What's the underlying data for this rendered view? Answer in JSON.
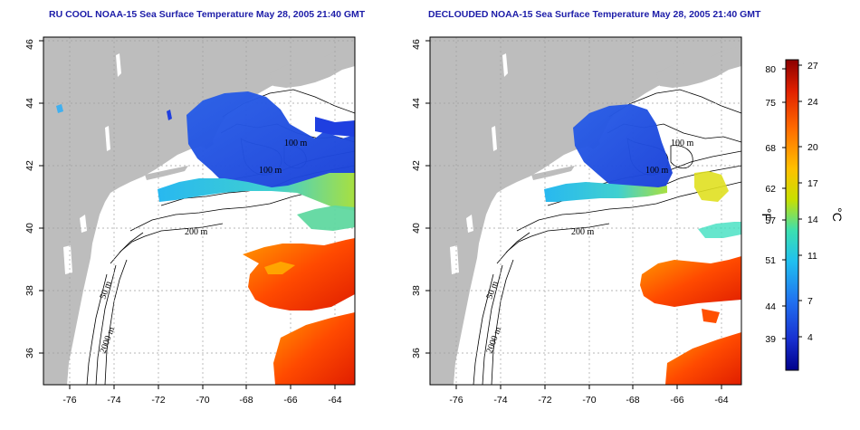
{
  "maps": [
    {
      "title": "RU COOL NOAA-15 Sea Surface Temperature May 28, 2005 21:40 GMT",
      "lon_ticks": [
        "-76",
        "-74",
        "-72",
        "-70",
        "-68",
        "-66",
        "-64"
      ],
      "lat_ticks": [
        "36",
        "38",
        "40",
        "42",
        "44",
        "46"
      ],
      "contour_labels": [
        "100 m",
        "100 m",
        "200 m",
        "50 m",
        "2000 m"
      ]
    },
    {
      "title": "DECLOUDED NOAA-15 Sea Surface Temperature May 28, 2005 21:40 GMT",
      "lon_ticks": [
        "-76",
        "-74",
        "-72",
        "-70",
        "-68",
        "-66",
        "-64"
      ],
      "lat_ticks": [
        "36",
        "38",
        "40",
        "42",
        "44",
        "46"
      ],
      "contour_labels": [
        "100 m",
        "100 m",
        "200 m",
        "50 m",
        "2000 m"
      ]
    }
  ],
  "colorbar": {
    "fahrenheit_ticks": [
      "80",
      "75",
      "68",
      "62",
      "57",
      "51",
      "44",
      "39"
    ],
    "celsius_ticks": [
      "27",
      "24",
      "20",
      "17",
      "14",
      "11",
      "7",
      "4"
    ],
    "fahrenheit_unit": "°F",
    "celsius_unit": "°C",
    "colors": [
      "#8b0000",
      "#e02000",
      "#ff6a00",
      "#ffc000",
      "#c8e000",
      "#3ce0b0",
      "#20c0f0",
      "#2070f0",
      "#1830d0",
      "#00008b"
    ]
  },
  "colors": {
    "land": "#bdbdbd",
    "ocean": "#ffffff",
    "title": "#1c1ca8",
    "grid": "#a0a0a0"
  }
}
